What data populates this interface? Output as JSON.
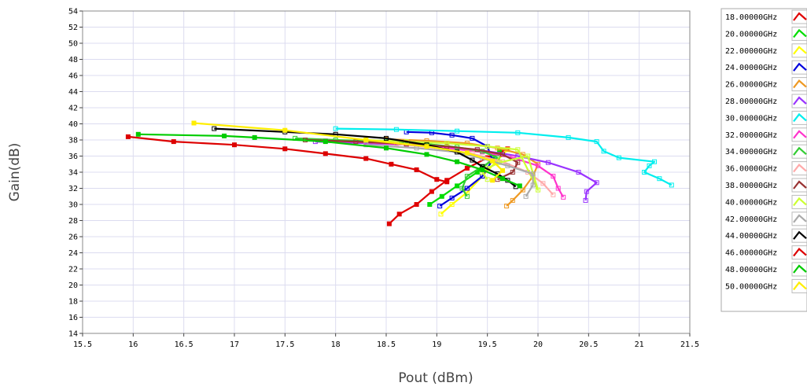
{
  "chart_data": {
    "type": "line",
    "xlabel": "Pout (dBm)",
    "ylabel": "Gain(dB)",
    "xlim": [
      15.5,
      21.5
    ],
    "ylim": [
      14,
      54
    ],
    "x_ticks": [
      "15.5",
      "16",
      "16.5",
      "17",
      "17.5",
      "18",
      "18.5",
      "19",
      "19.5",
      "20",
      "20.5",
      "21",
      "21.5"
    ],
    "y_ticks": [
      "14",
      "16",
      "18",
      "20",
      "22",
      "24",
      "26",
      "28",
      "30",
      "32",
      "34",
      "36",
      "38",
      "40",
      "42",
      "44",
      "46",
      "48",
      "50",
      "52",
      "54"
    ],
    "grid": true,
    "legend_position": "right",
    "series": [
      {
        "name": "18.00000GHz",
        "color": "#e00000",
        "x": [
          18.53,
          18.63,
          18.8,
          18.95,
          19.1,
          19.3,
          19.5,
          19.7
        ],
        "y": [
          27.6,
          28.8,
          30.0,
          31.6,
          33.0,
          34.5,
          35.8,
          36.9
        ]
      },
      {
        "name": "20.00000GHz",
        "color": "#00dd00",
        "x": [
          18.93,
          19.05,
          19.2,
          19.4,
          19.55,
          19.62
        ],
        "y": [
          30.0,
          31.0,
          32.3,
          34.0,
          35.6,
          36.8
        ]
      },
      {
        "name": "22.00000GHz",
        "color": "#ffff00",
        "x": [
          19.04,
          19.15,
          19.3,
          19.45,
          19.6,
          19.7
        ],
        "y": [
          28.8,
          30.0,
          31.5,
          33.5,
          35.5,
          36.8
        ]
      },
      {
        "name": "24.00000GHz",
        "color": "#0000dd",
        "x": [
          19.03,
          19.15,
          19.3,
          19.45,
          19.55,
          19.5,
          19.35,
          19.15,
          18.95,
          18.7
        ],
        "y": [
          29.8,
          30.8,
          32.0,
          33.5,
          35.5,
          37.2,
          38.2,
          38.6,
          38.9,
          39.0
        ]
      },
      {
        "name": "26.00000GHz",
        "color": "#ee9922",
        "x": [
          19.69,
          19.75,
          19.85,
          19.95,
          20.0,
          19.85,
          19.6,
          19.3,
          18.9,
          18.5
        ],
        "y": [
          29.8,
          30.5,
          31.8,
          33.5,
          35.0,
          36.2,
          37.0,
          37.6,
          37.9,
          38.1
        ]
      },
      {
        "name": "28.00000GHz",
        "color": "#9933ff",
        "x": [
          20.47,
          20.48,
          20.58,
          20.4,
          20.1,
          19.8,
          19.4,
          18.9,
          18.3,
          17.8
        ],
        "y": [
          30.5,
          31.6,
          32.7,
          34.0,
          35.2,
          36.0,
          36.8,
          37.3,
          37.6,
          37.8
        ]
      },
      {
        "name": "30.00000GHz",
        "color": "#00eeee",
        "x": [
          21.32,
          21.2,
          21.05,
          21.1,
          21.15,
          20.8,
          20.65,
          20.58,
          20.3,
          19.8,
          19.2,
          18.6,
          18.0
        ],
        "y": [
          32.4,
          33.2,
          34.0,
          34.8,
          35.3,
          35.8,
          36.6,
          37.8,
          38.3,
          38.9,
          39.1,
          39.3,
          39.4
        ]
      },
      {
        "name": "32.00000GHz",
        "color": "#ff33cc",
        "x": [
          20.25,
          20.2,
          20.15,
          20.0,
          19.75,
          19.45,
          19.1,
          18.7,
          18.3,
          17.9
        ],
        "y": [
          30.9,
          32.0,
          33.5,
          34.8,
          35.8,
          36.5,
          37.0,
          37.4,
          37.7,
          37.9
        ]
      },
      {
        "name": "34.00000GHz",
        "color": "#33cc33",
        "x": [
          19.3,
          19.25,
          19.3,
          19.45,
          19.6,
          19.45,
          19.2,
          18.9,
          18.5,
          18.0,
          17.6
        ],
        "y": [
          31.0,
          32.0,
          33.5,
          34.7,
          35.8,
          36.6,
          37.1,
          37.5,
          37.8,
          38.0,
          38.2
        ]
      },
      {
        "name": "36.00000GHz",
        "color": "#ffaaaa",
        "x": [
          20.15,
          20.05,
          19.9,
          19.65,
          19.35,
          19.0,
          18.6
        ],
        "y": [
          31.2,
          32.6,
          34.0,
          35.3,
          36.3,
          37.0,
          37.5
        ]
      },
      {
        "name": "38.00000GHz",
        "color": "#993333",
        "x": [
          19.6,
          19.75,
          19.8,
          19.65,
          19.4,
          19.1,
          18.7,
          18.2,
          17.7
        ],
        "y": [
          33.1,
          34.0,
          35.2,
          36.2,
          36.8,
          37.2,
          37.5,
          37.8,
          38.0
        ]
      },
      {
        "name": "40.00000GHz",
        "color": "#ccff33",
        "x": [
          19.5,
          19.45,
          19.5,
          19.62,
          19.9,
          20.0,
          19.8,
          19.5,
          19.1,
          18.7,
          18.3
        ],
        "y": [
          33.1,
          34.0,
          34.5,
          35.2,
          36.0,
          31.8,
          36.8,
          37.2,
          37.6,
          37.8,
          38.0
        ]
      },
      {
        "name": "42.00000GHz",
        "color": "#aaaaaa",
        "x": [
          19.88,
          19.95,
          19.95,
          19.7,
          19.45,
          19.2,
          18.8,
          18.3
        ],
        "y": [
          31.0,
          32.4,
          33.8,
          34.8,
          35.7,
          36.5,
          37.0,
          37.4
        ]
      },
      {
        "name": "44.00000GHz",
        "color": "#000000",
        "x": [
          19.78,
          19.7,
          19.6,
          19.45,
          19.35,
          19.2,
          18.9,
          18.5,
          18.0,
          17.5,
          16.8
        ],
        "y": [
          32.2,
          33.0,
          33.8,
          34.7,
          35.5,
          36.5,
          37.4,
          38.2,
          38.7,
          39.0,
          39.4
        ]
      },
      {
        "name": "46.00000GHz",
        "color": "#dd0000",
        "x": [
          19.1,
          19.0,
          18.8,
          18.55,
          18.3,
          17.9,
          17.5,
          17.0,
          16.4,
          15.95
        ],
        "y": [
          32.8,
          33.1,
          34.3,
          35.0,
          35.7,
          36.3,
          36.9,
          37.4,
          37.8,
          38.4
        ]
      },
      {
        "name": "48.00000GHz",
        "color": "#00cc00",
        "x": [
          19.82,
          19.65,
          19.45,
          19.2,
          18.9,
          18.5,
          17.9,
          17.2,
          16.9,
          16.05
        ],
        "y": [
          32.3,
          33.2,
          34.3,
          35.3,
          36.2,
          37.0,
          37.8,
          38.3,
          38.5,
          38.7
        ]
      },
      {
        "name": "50.00000GHz",
        "color": "#ffee00",
        "x": [
          19.55,
          19.65,
          19.55,
          19.3,
          18.9,
          18.3,
          17.5,
          16.6
        ],
        "y": [
          33.0,
          34.2,
          35.4,
          36.4,
          37.2,
          38.0,
          39.2,
          40.1
        ]
      }
    ]
  }
}
